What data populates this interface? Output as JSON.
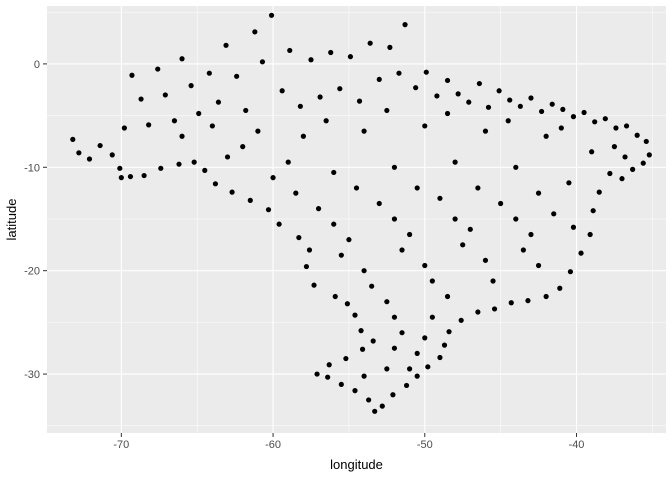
{
  "chart_data": {
    "type": "scatter",
    "title": "",
    "xlabel": "longitude",
    "ylabel": "latitude",
    "xlim": [
      -74.9,
      -34.1
    ],
    "ylim": [
      -35.7,
      5.6
    ],
    "x_ticks": [
      -70,
      -60,
      -50,
      -40
    ],
    "y_ticks": [
      0,
      -10,
      -20,
      -30
    ],
    "x_tick_labels": [
      "-70",
      "-60",
      "-50",
      "-40"
    ],
    "y_tick_labels": [
      "0",
      "-10",
      "-20",
      "-30"
    ],
    "grid": true,
    "legend": "none",
    "colors": {
      "panel": "#ebebeb",
      "grid": "#ffffff",
      "point": "#000000"
    },
    "series": [
      {
        "points": [
          [
            -73.2,
            -7.3
          ],
          [
            -72.8,
            -8.6
          ],
          [
            -72.1,
            -9.2
          ],
          [
            -71.4,
            -7.9
          ],
          [
            -70.6,
            -8.8
          ],
          [
            -70.1,
            -10.1
          ],
          [
            -69.8,
            -6.2
          ],
          [
            -69.3,
            -1.1
          ],
          [
            -68.7,
            -3.4
          ],
          [
            -68.2,
            -5.9
          ],
          [
            -67.6,
            -0.5
          ],
          [
            -67.1,
            -3.0
          ],
          [
            -66.5,
            -5.5
          ],
          [
            -66.0,
            0.5
          ],
          [
            -65.4,
            -2.1
          ],
          [
            -64.9,
            -4.8
          ],
          [
            -64.2,
            -0.9
          ],
          [
            -63.6,
            -3.7
          ],
          [
            -63.1,
            1.8
          ],
          [
            -62.4,
            -1.2
          ],
          [
            -61.8,
            -4.5
          ],
          [
            -61.2,
            3.1
          ],
          [
            -60.7,
            0.2
          ],
          [
            -60.1,
            4.7
          ],
          [
            -59.4,
            -2.6
          ],
          [
            -58.9,
            1.3
          ],
          [
            -58.2,
            -4.1
          ],
          [
            -57.5,
            0.4
          ],
          [
            -56.9,
            -3.2
          ],
          [
            -56.2,
            1.1
          ],
          [
            -55.6,
            -2.4
          ],
          [
            -54.9,
            0.7
          ],
          [
            -54.3,
            -3.6
          ],
          [
            -53.6,
            2.0
          ],
          [
            -53.0,
            -1.5
          ],
          [
            -52.3,
            1.6
          ],
          [
            -51.7,
            -0.9
          ],
          [
            -51.3,
            3.8
          ],
          [
            -50.6,
            -2.3
          ],
          [
            -49.9,
            -0.8
          ],
          [
            -49.2,
            -3.1
          ],
          [
            -48.5,
            -1.6
          ],
          [
            -47.8,
            -2.9
          ],
          [
            -47.1,
            -3.7
          ],
          [
            -46.4,
            -1.9
          ],
          [
            -45.8,
            -4.2
          ],
          [
            -45.1,
            -2.6
          ],
          [
            -44.4,
            -3.5
          ],
          [
            -43.7,
            -4.1
          ],
          [
            -43.0,
            -3.3
          ],
          [
            -42.3,
            -4.6
          ],
          [
            -41.6,
            -3.9
          ],
          [
            -40.9,
            -4.4
          ],
          [
            -40.2,
            -5.1
          ],
          [
            -39.5,
            -4.7
          ],
          [
            -38.8,
            -5.6
          ],
          [
            -38.1,
            -5.3
          ],
          [
            -37.4,
            -6.2
          ],
          [
            -36.7,
            -6.0
          ],
          [
            -36.0,
            -6.9
          ],
          [
            -35.4,
            -7.5
          ],
          [
            -35.2,
            -8.8
          ],
          [
            -35.6,
            -9.6
          ],
          [
            -36.3,
            -10.2
          ],
          [
            -37.0,
            -11.1
          ],
          [
            -37.8,
            -10.6
          ],
          [
            -38.5,
            -12.4
          ],
          [
            -38.9,
            -14.2
          ],
          [
            -39.1,
            -16.5
          ],
          [
            -39.7,
            -18.3
          ],
          [
            -40.4,
            -20.1
          ],
          [
            -41.1,
            -21.7
          ],
          [
            -42.0,
            -22.5
          ],
          [
            -43.2,
            -22.9
          ],
          [
            -44.3,
            -23.1
          ],
          [
            -45.4,
            -23.7
          ],
          [
            -46.5,
            -24.0
          ],
          [
            -47.6,
            -24.8
          ],
          [
            -48.4,
            -25.9
          ],
          [
            -48.7,
            -27.2
          ],
          [
            -49.0,
            -28.4
          ],
          [
            -49.8,
            -29.3
          ],
          [
            -50.5,
            -30.2
          ],
          [
            -51.2,
            -31.1
          ],
          [
            -52.1,
            -32.0
          ],
          [
            -52.8,
            -33.1
          ],
          [
            -53.3,
            -33.6
          ],
          [
            -53.7,
            -32.5
          ],
          [
            -54.6,
            -31.6
          ],
          [
            -55.5,
            -31.0
          ],
          [
            -56.4,
            -30.3
          ],
          [
            -57.1,
            -30.0
          ],
          [
            -56.3,
            -29.1
          ],
          [
            -55.2,
            -28.5
          ],
          [
            -54.1,
            -27.6
          ],
          [
            -53.4,
            -26.8
          ],
          [
            -54.2,
            -25.8
          ],
          [
            -54.6,
            -24.3
          ],
          [
            -55.1,
            -23.2
          ],
          [
            -55.9,
            -22.5
          ],
          [
            -57.3,
            -21.4
          ],
          [
            -57.8,
            -19.6
          ],
          [
            -57.6,
            -18.0
          ],
          [
            -58.3,
            -16.8
          ],
          [
            -59.6,
            -15.5
          ],
          [
            -60.3,
            -14.1
          ],
          [
            -61.5,
            -13.2
          ],
          [
            -62.7,
            -12.4
          ],
          [
            -63.8,
            -11.6
          ],
          [
            -64.5,
            -10.3
          ],
          [
            -65.2,
            -9.5
          ],
          [
            -66.2,
            -9.7
          ],
          [
            -67.4,
            -10.1
          ],
          [
            -68.5,
            -10.8
          ],
          [
            -69.4,
            -10.9
          ],
          [
            -70.0,
            -11.0
          ],
          [
            -62.0,
            -8.0
          ],
          [
            -58.0,
            -7.0
          ],
          [
            -54.0,
            -6.5
          ],
          [
            -50.0,
            -6.0
          ],
          [
            -46.0,
            -6.5
          ],
          [
            -42.0,
            -7.0
          ],
          [
            -39.0,
            -8.5
          ],
          [
            -60.0,
            -11.0
          ],
          [
            -56.0,
            -10.5
          ],
          [
            -52.0,
            -10.0
          ],
          [
            -48.0,
            -9.5
          ],
          [
            -44.0,
            -10.0
          ],
          [
            -40.5,
            -11.5
          ],
          [
            -57.0,
            -14.0
          ],
          [
            -53.0,
            -13.5
          ],
          [
            -49.0,
            -13.0
          ],
          [
            -45.0,
            -13.5
          ],
          [
            -41.5,
            -14.5
          ],
          [
            -55.0,
            -17.0
          ],
          [
            -51.0,
            -16.5
          ],
          [
            -47.0,
            -16.0
          ],
          [
            -43.0,
            -16.5
          ],
          [
            -54.0,
            -20.0
          ],
          [
            -50.0,
            -19.5
          ],
          [
            -46.0,
            -19.0
          ],
          [
            -42.5,
            -19.5
          ],
          [
            -52.5,
            -23.0
          ],
          [
            -48.5,
            -22.5
          ],
          [
            -51.5,
            -26.0
          ],
          [
            -50.5,
            -28.0
          ],
          [
            -52.5,
            -29.5
          ],
          [
            -54.0,
            -30.2
          ],
          [
            -66.0,
            -7.0
          ],
          [
            -64.0,
            -6.0
          ],
          [
            -61.0,
            -6.5
          ],
          [
            -59.0,
            -9.5
          ],
          [
            -63.0,
            -9.0
          ],
          [
            -56.5,
            -5.5
          ],
          [
            -52.5,
            -4.5
          ],
          [
            -48.5,
            -4.8
          ],
          [
            -44.5,
            -5.5
          ],
          [
            -41.0,
            -6.2
          ],
          [
            -37.5,
            -8.0
          ],
          [
            -36.8,
            -9.0
          ],
          [
            -58.5,
            -12.5
          ],
          [
            -54.5,
            -12.0
          ],
          [
            -50.5,
            -12.0
          ],
          [
            -46.5,
            -12.0
          ],
          [
            -42.5,
            -12.5
          ],
          [
            -56.0,
            -15.5
          ],
          [
            -52.0,
            -15.0
          ],
          [
            -48.0,
            -15.0
          ],
          [
            -44.0,
            -15.0
          ],
          [
            -40.2,
            -15.8
          ],
          [
            -55.5,
            -18.5
          ],
          [
            -51.5,
            -18.0
          ],
          [
            -47.5,
            -17.5
          ],
          [
            -43.5,
            -18.0
          ],
          [
            -53.5,
            -21.5
          ],
          [
            -49.5,
            -21.0
          ],
          [
            -45.5,
            -21.0
          ],
          [
            -52.0,
            -24.5
          ],
          [
            -49.5,
            -24.5
          ],
          [
            -50.0,
            -26.5
          ],
          [
            -52.0,
            -27.5
          ],
          [
            -51.0,
            -29.5
          ]
        ]
      }
    ]
  }
}
